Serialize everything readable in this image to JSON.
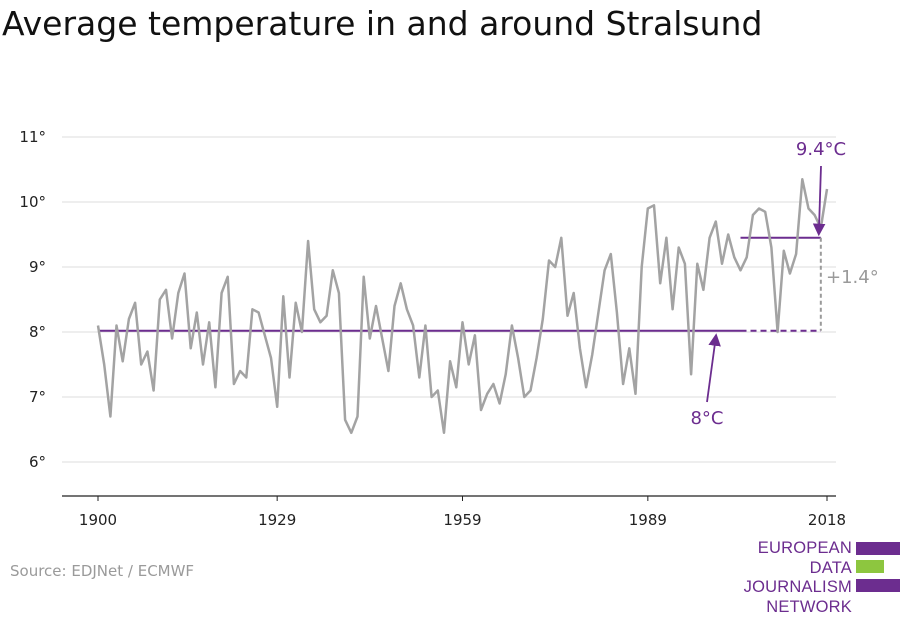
{
  "title": "Average temperature in and around Stralsund",
  "source": "Source: EDJNet / ECMWF",
  "logo": {
    "lines": [
      "EUROPEAN",
      "DATA JOURNALISM",
      "NETWORK"
    ],
    "colors": [
      "#6c2d8f",
      "#8dc63f",
      "#6c2d8f"
    ]
  },
  "colors": {
    "series": "#a3a3a3",
    "accent": "#6c2d8f",
    "grid": "#dcdcdc",
    "diff": "#9a9a9a"
  },
  "chart_data": {
    "type": "line",
    "title": "Average temperature in and around Stralsund",
    "xlabel": "",
    "ylabel": "",
    "xlim": [
      1900,
      2018
    ],
    "ylim": [
      5.5,
      11.5
    ],
    "x_ticks": [
      1900,
      1929,
      1959,
      1989,
      2018
    ],
    "y_ticks": [
      6,
      7,
      8,
      9,
      10,
      11
    ],
    "y_tick_labels": [
      "6°",
      "7°",
      "8°",
      "9°",
      "10°",
      "11°"
    ],
    "grid": true,
    "series": [
      {
        "x_start": 1900,
        "values": [
          8.1,
          7.5,
          6.7,
          8.1,
          7.55,
          8.2,
          8.45,
          7.5,
          7.7,
          7.1,
          8.5,
          8.65,
          7.9,
          8.6,
          8.9,
          7.75,
          8.3,
          7.5,
          8.15,
          7.15,
          8.6,
          8.85,
          7.2,
          7.4,
          7.3,
          8.35,
          8.3,
          7.95,
          7.6,
          6.85,
          8.55,
          7.3,
          8.45,
          8.0,
          9.4,
          8.35,
          8.15,
          8.25,
          8.95,
          8.6,
          6.65,
          6.45,
          6.7,
          8.85,
          7.9,
          8.4,
          7.9,
          7.4,
          8.4,
          8.75,
          8.35,
          8.1,
          7.3,
          8.1,
          7.0,
          7.1,
          6.45,
          7.55,
          7.15,
          8.15,
          7.5,
          7.95,
          6.8,
          7.05,
          7.2,
          6.9,
          7.35,
          8.1,
          7.6,
          7.0,
          7.1,
          7.6,
          8.2,
          9.1,
          9.0,
          9.45,
          8.25,
          8.6,
          7.75,
          7.15,
          7.65,
          8.3,
          8.95,
          9.2,
          8.3,
          7.2,
          7.75,
          7.05,
          9.0,
          9.9,
          9.95,
          8.75,
          9.45,
          8.35,
          9.3,
          9.05,
          7.35,
          9.05,
          8.65,
          9.45,
          9.7,
          9.05,
          9.5,
          9.15,
          8.95,
          9.15,
          9.8,
          9.9,
          9.85,
          9.3,
          8.0,
          9.25,
          8.9,
          9.2,
          10.35,
          9.9,
          9.8,
          9.6,
          10.2
        ]
      }
    ],
    "baseline": {
      "value": 8.02,
      "from": 1900,
      "to": 2017,
      "solid_to": 2004,
      "label": "8°C",
      "label_x": 2002,
      "label_y": 7.0
    },
    "recent": {
      "value": 9.45,
      "from": 2004,
      "to": 2017,
      "label": "9.4°C",
      "label_x": 2017,
      "label_y": 10.55
    },
    "difference": {
      "label": "+1.4°",
      "x": 2017
    }
  }
}
